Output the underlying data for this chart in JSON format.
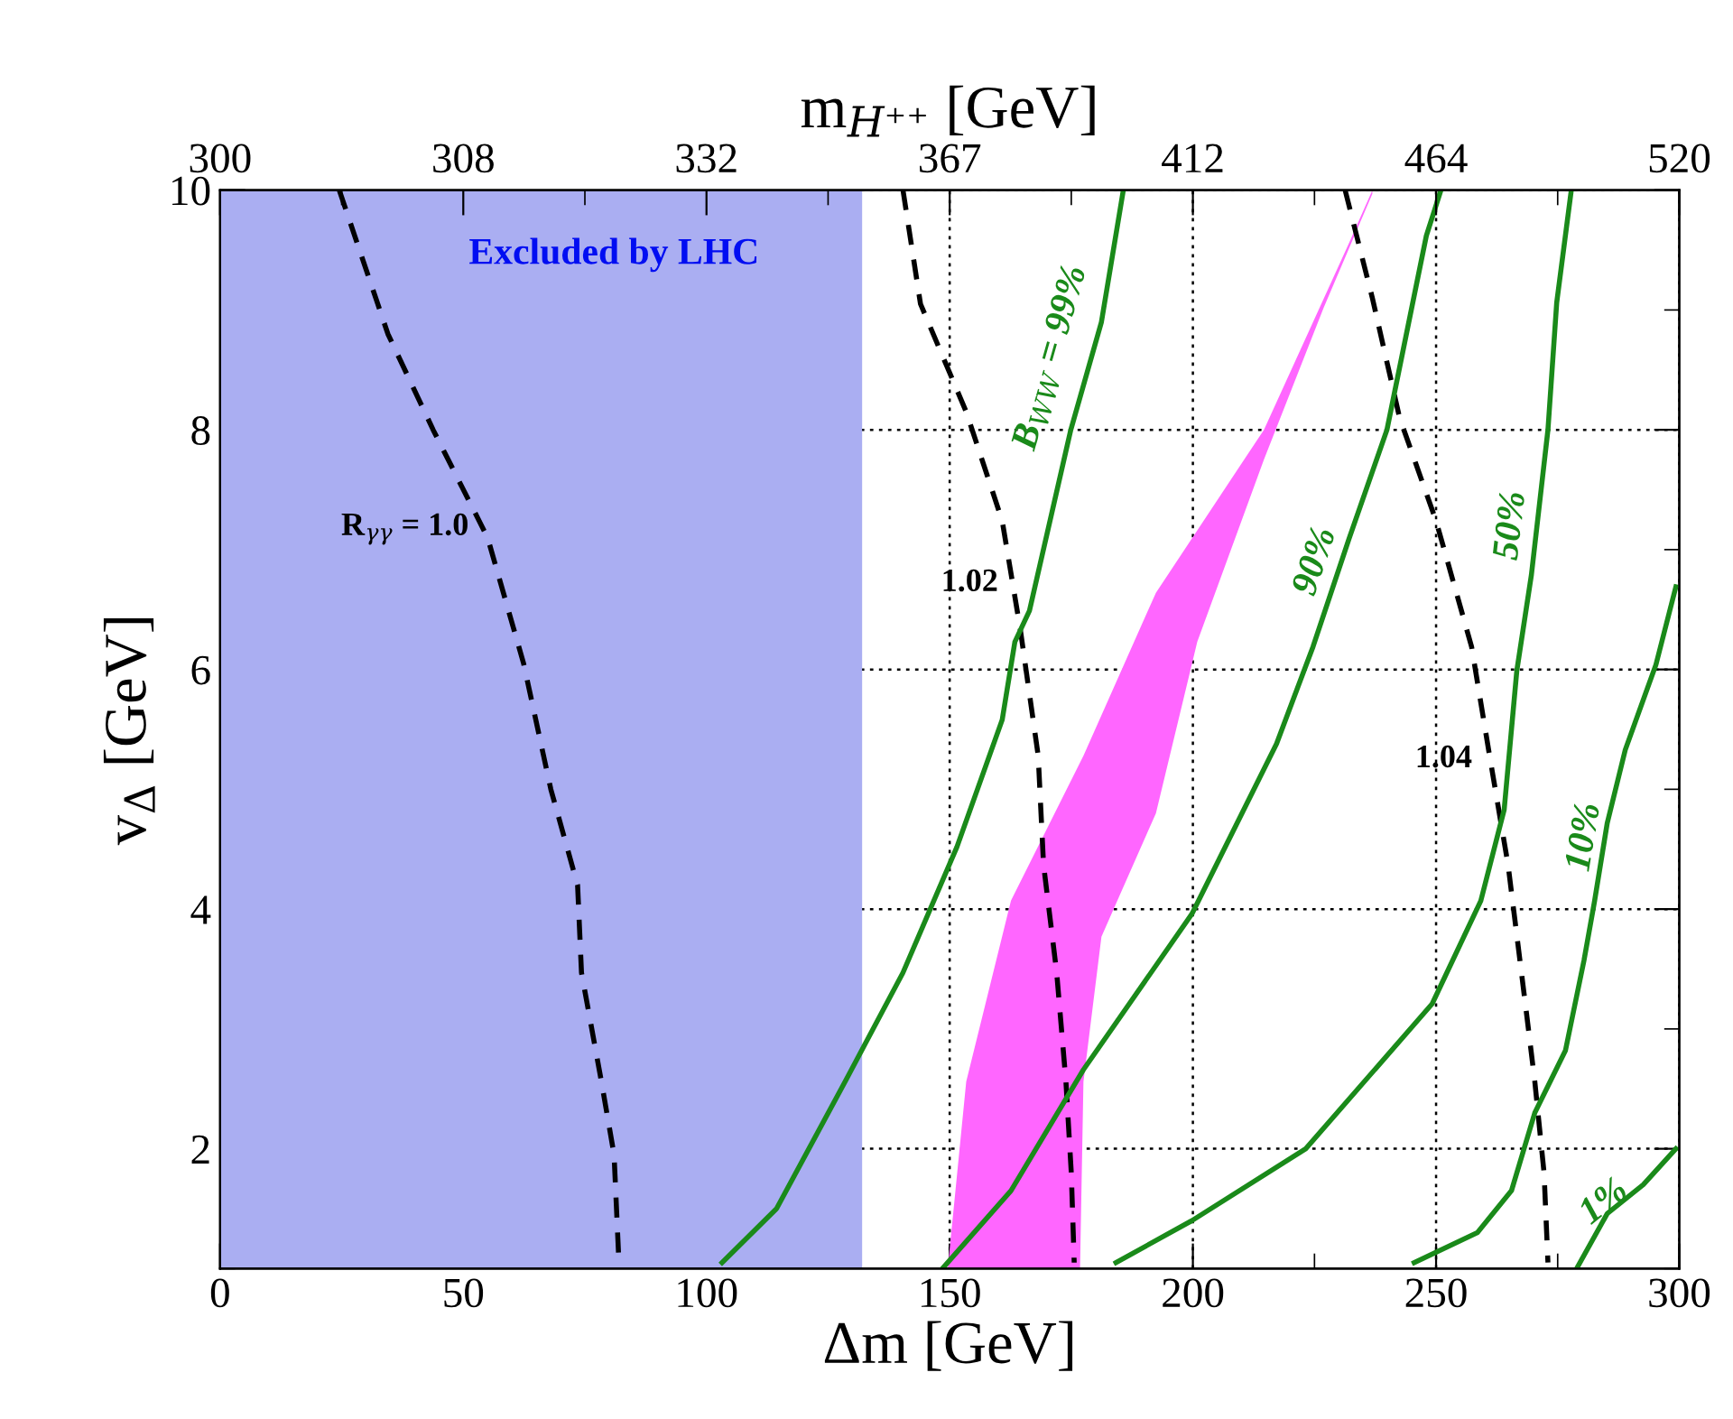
{
  "chart_data": {
    "type": "line",
    "xlabel": "Δm [GeV]",
    "ylabel": "v$_{Δ}$ [GeV]",
    "x2label": "m$_{H⁺⁺}$ [GeV]",
    "xlim": [
      0,
      300
    ],
    "xticks": [
      0,
      50,
      100,
      150,
      200,
      250,
      300
    ],
    "ylim": [
      1,
      10
    ],
    "yticks": [
      2,
      4,
      6,
      8,
      10
    ],
    "annotations": [
      "300",
      "308",
      "332",
      "367",
      "412",
      "464",
      "520"
    ],
    "grid": true,
    "bands": [
      {
        "axis": "x",
        "from": 0,
        "to": 132,
        "label": "Excluded by LHC",
        "color": "#aaaef2"
      }
    ],
    "series": [
      {
        "type": "area",
        "color": "#ff66ff",
        "x": [
          149.6,
          153.4,
          162.6,
          177.5,
          192.4,
          214.6,
          232,
          236.9,
          236.9,
          226.9,
          214.6,
          200.9,
          192.4,
          181.2,
          177.5,
          176.8
        ],
        "values": [
          1.0,
          2.56,
          4.07,
          5.28,
          6.64,
          8,
          9.55,
          10,
          9.97,
          9.02,
          7.75,
          6.23,
          4.8,
          3.77,
          2.56,
          1.0
        ]
      },
      {
        "name": "R$_{γγ}$ = 1.0",
        "type": "line",
        "color": "#000000",
        "line_style": "dashed",
        "x": [
          24.5,
          34.5,
          43.8,
          55,
          62.4,
          68,
          73.5,
          74.3,
          78.4,
          81,
          82
        ],
        "values": [
          10,
          8.8,
          8,
          7.1,
          6.05,
          5,
          4.2,
          3.47,
          2.56,
          1.95,
          1.05
        ]
      },
      {
        "name": "1.02",
        "type": "line",
        "color": "#000000",
        "line_style": "dashed",
        "x": [
          140.4,
          144,
          153.4,
          160.8,
          164.5,
          168.2,
          169.3,
          172,
          173.9,
          175,
          175.6
        ],
        "values": [
          10,
          9.05,
          8.15,
          7.24,
          6.34,
          5.28,
          4.37,
          3.47,
          2.56,
          1.8,
          1.05
        ]
      },
      {
        "name": "1.04",
        "type": "line",
        "color": "#000000",
        "line_style": "dashed",
        "x": [
          231.3,
          236.9,
          242.5,
          250,
          257.3,
          261,
          264.8,
          268.5,
          270.3,
          272.2,
          273
        ],
        "values": [
          10,
          9.1,
          8.1,
          7.24,
          6.19,
          5.28,
          4.37,
          3.16,
          2.56,
          1.8,
          1.05
        ]
      },
      {
        "name": "B$_{WW}$ = 99%",
        "type": "line",
        "color": "#1a8a1a",
        "line_style": "solid",
        "x": [
          103.2,
          114.4,
          128.5,
          140.4,
          151.5,
          160.8,
          163.4,
          166.4,
          174.9,
          181.2,
          185.7
        ],
        "values": [
          1.05,
          1.5,
          2.56,
          3.47,
          4.52,
          5.58,
          6.23,
          6.49,
          8,
          8.9,
          10
        ]
      },
      {
        "name": "90%",
        "type": "line",
        "color": "#1a8a1a",
        "line_style": "solid",
        "x": [
          148.5,
          162.6,
          177.5,
          199.8,
          217.2,
          224.7,
          232.1,
          239.9,
          248,
          251
        ],
        "values": [
          1.0,
          1.65,
          2.66,
          3.96,
          5.38,
          6.19,
          7.09,
          8,
          9.62,
          10
        ]
      },
      {
        "name": "50%",
        "type": "line",
        "color": "#1a8a1a",
        "line_style": "solid",
        "x": [
          184.2,
          199.8,
          223.2,
          249.2,
          259.2,
          264,
          266.6,
          269.6,
          273,
          274.8,
          277.8
        ],
        "values": [
          1.05,
          1.4,
          2.0,
          3.21,
          4.07,
          4.83,
          5.99,
          6.79,
          8,
          9.06,
          10
        ]
      },
      {
        "name": "10%",
        "type": "line",
        "color": "#1a8a1a",
        "line_style": "solid",
        "x": [
          245.5,
          258.5,
          265.5,
          270.3,
          276.6,
          280.4,
          282.6,
          285.2,
          288.9,
          295.2,
          299.3
        ],
        "values": [
          1.05,
          1.3,
          1.65,
          2.3,
          2.82,
          3.57,
          4.07,
          4.72,
          5.33,
          6.04,
          6.69
        ]
      },
      {
        "name": "1%",
        "type": "line",
        "color": "#1a8a1a",
        "line_style": "solid",
        "x": [
          278.9,
          285.2,
          292.6,
          299.3
        ],
        "values": [
          1.0,
          1.46,
          1.7,
          2.0
        ]
      }
    ]
  }
}
